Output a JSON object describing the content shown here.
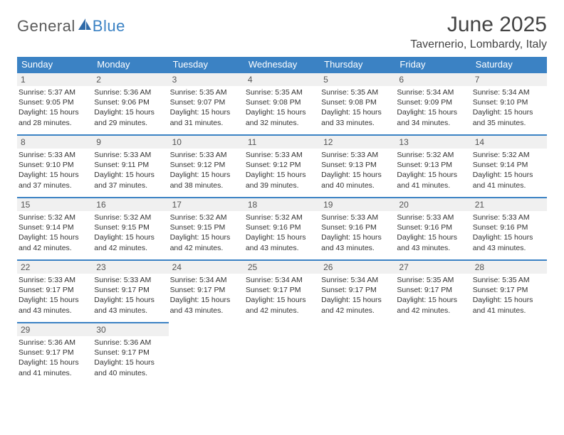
{
  "logo": {
    "text1": "General",
    "text2": "Blue"
  },
  "title": "June 2025",
  "location": "Tavernerio, Lombardy, Italy",
  "colors": {
    "header_bg": "#3b82c4",
    "header_fg": "#ffffff",
    "daynum_bg": "#f0f0f0",
    "daynum_border": "#3b82c4",
    "page_bg": "#ffffff",
    "text": "#333333"
  },
  "weekdays": [
    "Sunday",
    "Monday",
    "Tuesday",
    "Wednesday",
    "Thursday",
    "Friday",
    "Saturday"
  ],
  "weeks": [
    [
      {
        "n": "1",
        "sr": "5:37 AM",
        "ss": "9:05 PM",
        "dl": "15 hours and 28 minutes."
      },
      {
        "n": "2",
        "sr": "5:36 AM",
        "ss": "9:06 PM",
        "dl": "15 hours and 29 minutes."
      },
      {
        "n": "3",
        "sr": "5:35 AM",
        "ss": "9:07 PM",
        "dl": "15 hours and 31 minutes."
      },
      {
        "n": "4",
        "sr": "5:35 AM",
        "ss": "9:08 PM",
        "dl": "15 hours and 32 minutes."
      },
      {
        "n": "5",
        "sr": "5:35 AM",
        "ss": "9:08 PM",
        "dl": "15 hours and 33 minutes."
      },
      {
        "n": "6",
        "sr": "5:34 AM",
        "ss": "9:09 PM",
        "dl": "15 hours and 34 minutes."
      },
      {
        "n": "7",
        "sr": "5:34 AM",
        "ss": "9:10 PM",
        "dl": "15 hours and 35 minutes."
      }
    ],
    [
      {
        "n": "8",
        "sr": "5:33 AM",
        "ss": "9:10 PM",
        "dl": "15 hours and 37 minutes."
      },
      {
        "n": "9",
        "sr": "5:33 AM",
        "ss": "9:11 PM",
        "dl": "15 hours and 37 minutes."
      },
      {
        "n": "10",
        "sr": "5:33 AM",
        "ss": "9:12 PM",
        "dl": "15 hours and 38 minutes."
      },
      {
        "n": "11",
        "sr": "5:33 AM",
        "ss": "9:12 PM",
        "dl": "15 hours and 39 minutes."
      },
      {
        "n": "12",
        "sr": "5:33 AM",
        "ss": "9:13 PM",
        "dl": "15 hours and 40 minutes."
      },
      {
        "n": "13",
        "sr": "5:32 AM",
        "ss": "9:13 PM",
        "dl": "15 hours and 41 minutes."
      },
      {
        "n": "14",
        "sr": "5:32 AM",
        "ss": "9:14 PM",
        "dl": "15 hours and 41 minutes."
      }
    ],
    [
      {
        "n": "15",
        "sr": "5:32 AM",
        "ss": "9:14 PM",
        "dl": "15 hours and 42 minutes."
      },
      {
        "n": "16",
        "sr": "5:32 AM",
        "ss": "9:15 PM",
        "dl": "15 hours and 42 minutes."
      },
      {
        "n": "17",
        "sr": "5:32 AM",
        "ss": "9:15 PM",
        "dl": "15 hours and 42 minutes."
      },
      {
        "n": "18",
        "sr": "5:32 AM",
        "ss": "9:16 PM",
        "dl": "15 hours and 43 minutes."
      },
      {
        "n": "19",
        "sr": "5:33 AM",
        "ss": "9:16 PM",
        "dl": "15 hours and 43 minutes."
      },
      {
        "n": "20",
        "sr": "5:33 AM",
        "ss": "9:16 PM",
        "dl": "15 hours and 43 minutes."
      },
      {
        "n": "21",
        "sr": "5:33 AM",
        "ss": "9:16 PM",
        "dl": "15 hours and 43 minutes."
      }
    ],
    [
      {
        "n": "22",
        "sr": "5:33 AM",
        "ss": "9:17 PM",
        "dl": "15 hours and 43 minutes."
      },
      {
        "n": "23",
        "sr": "5:33 AM",
        "ss": "9:17 PM",
        "dl": "15 hours and 43 minutes."
      },
      {
        "n": "24",
        "sr": "5:34 AM",
        "ss": "9:17 PM",
        "dl": "15 hours and 43 minutes."
      },
      {
        "n": "25",
        "sr": "5:34 AM",
        "ss": "9:17 PM",
        "dl": "15 hours and 42 minutes."
      },
      {
        "n": "26",
        "sr": "5:34 AM",
        "ss": "9:17 PM",
        "dl": "15 hours and 42 minutes."
      },
      {
        "n": "27",
        "sr": "5:35 AM",
        "ss": "9:17 PM",
        "dl": "15 hours and 42 minutes."
      },
      {
        "n": "28",
        "sr": "5:35 AM",
        "ss": "9:17 PM",
        "dl": "15 hours and 41 minutes."
      }
    ],
    [
      {
        "n": "29",
        "sr": "5:36 AM",
        "ss": "9:17 PM",
        "dl": "15 hours and 41 minutes."
      },
      {
        "n": "30",
        "sr": "5:36 AM",
        "ss": "9:17 PM",
        "dl": "15 hours and 40 minutes."
      },
      null,
      null,
      null,
      null,
      null
    ]
  ],
  "labels": {
    "sunrise": "Sunrise:",
    "sunset": "Sunset:",
    "daylight": "Daylight:"
  }
}
